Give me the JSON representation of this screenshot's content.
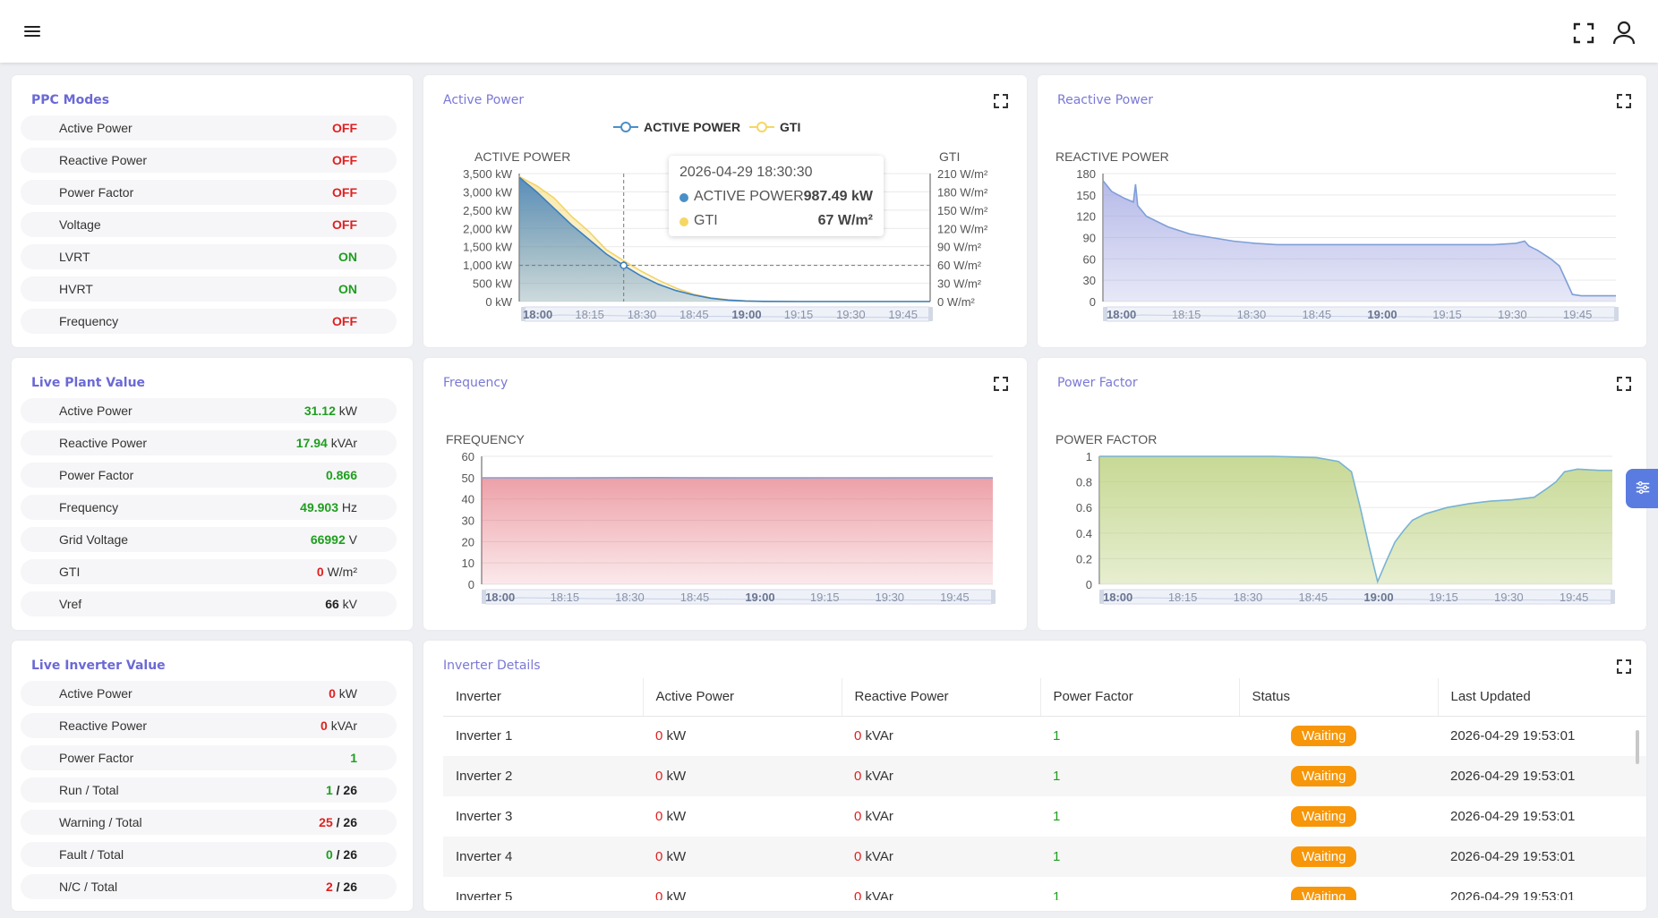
{
  "ppc_modes": {
    "title": "PPC Modes",
    "rows": [
      {
        "label": "Active Power",
        "value": "OFF",
        "status": "red"
      },
      {
        "label": "Reactive Power",
        "value": "OFF",
        "status": "red"
      },
      {
        "label": "Power Factor",
        "value": "OFF",
        "status": "red"
      },
      {
        "label": "Voltage",
        "value": "OFF",
        "status": "red"
      },
      {
        "label": "LVRT",
        "value": "ON",
        "status": "green"
      },
      {
        "label": "HVRT",
        "value": "ON",
        "status": "green"
      },
      {
        "label": "Frequency",
        "value": "OFF",
        "status": "red"
      }
    ]
  },
  "live_plant": {
    "title": "Live Plant Value",
    "rows": [
      {
        "label": "Active Power",
        "value": "31.12",
        "unit": "kW",
        "status": "green"
      },
      {
        "label": "Reactive Power",
        "value": "17.94",
        "unit": "kVAr",
        "status": "green"
      },
      {
        "label": "Power Factor",
        "value": "0.866",
        "unit": "",
        "status": "green"
      },
      {
        "label": "Frequency",
        "value": "49.903",
        "unit": "Hz",
        "status": "green"
      },
      {
        "label": "Grid Voltage",
        "value": "66992",
        "unit": "V",
        "status": "green"
      },
      {
        "label": "GTI",
        "value": "0",
        "unit": "W/m²",
        "status": "red"
      },
      {
        "label": "Vref",
        "value": "66",
        "unit": "kV",
        "status": "dark"
      }
    ]
  },
  "live_inverter": {
    "title": "Live Inverter Value",
    "rows": [
      {
        "label": "Active Power",
        "value": "0",
        "unit": "kW",
        "status": "red"
      },
      {
        "label": "Reactive Power",
        "value": "0",
        "unit": "kVAr",
        "status": "red"
      },
      {
        "label": "Power Factor",
        "value": "1",
        "unit": "",
        "status": "green"
      },
      {
        "label": "Run / Total",
        "value": "1",
        "total": "/ 26",
        "status": "green"
      },
      {
        "label": "Warning / Total",
        "value": "25",
        "total": "/ 26",
        "status": "red"
      },
      {
        "label": "Fault / Total",
        "value": "0",
        "total": "/ 26",
        "status": "green"
      },
      {
        "label": "N/C / Total",
        "value": "2",
        "total": "/ 26",
        "status": "red"
      }
    ]
  },
  "colors": {
    "accent": "#7a78d6",
    "off": "#e02020",
    "on": "#1f9e1f",
    "waiting": "#f79608",
    "active_power_series": "#4a90c8",
    "gti_series": "#f5d764",
    "reactive_series": "#9aa0dc",
    "frequency_series": "#e57f86",
    "power_factor_series": "#a9c866"
  },
  "zoom_labels": [
    "18:00",
    "18:15",
    "18:30",
    "18:45",
    "19:00",
    "19:15",
    "19:30",
    "19:45"
  ],
  "zoom_bold": [
    "18:00",
    "19:00"
  ],
  "active_power_card": {
    "title": "Active Power",
    "tooltip": {
      "time": "2026-04-29 18:30:30",
      "rows": [
        {
          "name": "ACTIVE POWER",
          "value": "987.49 kW"
        },
        {
          "name": "GTI",
          "value": "67 W/m²"
        }
      ]
    }
  },
  "reactive_power_card": {
    "title": "Reactive Power"
  },
  "frequency_card": {
    "title": "Frequency"
  },
  "power_factor_card": {
    "title": "Power Factor"
  },
  "chart_data": [
    {
      "type": "area",
      "title": "Active Power",
      "legend": [
        "ACTIVE POWER",
        "GTI"
      ],
      "legend_position": "top-center",
      "ylabel": "ACTIVE POWER",
      "y2label": "GTI",
      "y_ticks": [
        "3,500 kW",
        "3,000 kW",
        "2,500 kW",
        "2,000 kW",
        "1,500 kW",
        "1,000 kW",
        "500 kW",
        "0 kW"
      ],
      "y2_ticks": [
        "210 W/m²",
        "180 W/m²",
        "150 W/m²",
        "120 W/m²",
        "90 W/m²",
        "60 W/m²",
        "30 W/m²",
        "0 W/m²"
      ],
      "ylim": [
        0,
        3500
      ],
      "y2lim": [
        0,
        210
      ],
      "x_range": [
        "18:00",
        "19:58"
      ],
      "series": [
        {
          "name": "ACTIVE POWER",
          "x_min": [
            0,
            5,
            10,
            15,
            20,
            25,
            30,
            35,
            40,
            45,
            50,
            55,
            60,
            65,
            70,
            80,
            90,
            100,
            110,
            118
          ],
          "values": [
            3400,
            3000,
            2550,
            2100,
            1700,
            1300,
            987,
            700,
            470,
            300,
            180,
            90,
            40,
            15,
            5,
            0,
            0,
            0,
            0,
            0
          ]
        },
        {
          "name": "GTI",
          "x_min": [
            0,
            5,
            10,
            15,
            20,
            25,
            30,
            35,
            40,
            45,
            50,
            55,
            60,
            65,
            70,
            80,
            90,
            100,
            110,
            118
          ],
          "values": [
            205,
            190,
            170,
            140,
            115,
            85,
            67,
            50,
            35,
            22,
            12,
            6,
            3,
            1,
            0,
            0,
            0,
            0,
            0,
            0
          ]
        }
      ]
    },
    {
      "type": "area",
      "title": "Reactive Power",
      "ylabel": "REACTIVE POWER",
      "y_ticks": [
        "180",
        "150",
        "120",
        "90",
        "60",
        "30",
        "0"
      ],
      "ylim": [
        0,
        180
      ],
      "x_range": [
        "18:00",
        "19:58"
      ],
      "series": [
        {
          "name": "Reactive Power",
          "x_min": [
            0,
            2,
            5,
            7,
            7.5,
            8,
            10,
            15,
            20,
            25,
            30,
            35,
            40,
            50,
            60,
            70,
            80,
            90,
            95,
            97,
            98,
            100,
            103,
            105,
            108,
            110,
            118
          ],
          "values": [
            170,
            155,
            145,
            140,
            165,
            135,
            120,
            105,
            95,
            90,
            85,
            82,
            80,
            80,
            80,
            80,
            80,
            80,
            82,
            85,
            78,
            72,
            60,
            50,
            10,
            8,
            8
          ]
        }
      ]
    },
    {
      "type": "area",
      "title": "Frequency",
      "ylabel": "FREQUENCY",
      "y_ticks": [
        "60",
        "50",
        "40",
        "30",
        "20",
        "10",
        "0"
      ],
      "ylim": [
        0,
        60
      ],
      "x_range": [
        "18:00",
        "19:58"
      ],
      "series": [
        {
          "name": "Frequency",
          "x_min": [
            0,
            20,
            40,
            60,
            80,
            100,
            118
          ],
          "values": [
            49.95,
            49.9,
            50.0,
            49.9,
            49.95,
            49.9,
            49.903
          ]
        }
      ]
    },
    {
      "type": "area",
      "title": "Power Factor",
      "ylabel": "POWER FACTOR",
      "y_ticks": [
        "1",
        "0.8",
        "0.6",
        "0.4",
        "0.2",
        "0"
      ],
      "ylim": [
        0,
        1
      ],
      "x_range": [
        "18:00",
        "19:58"
      ],
      "series": [
        {
          "name": "Power Factor",
          "x_min": [
            0,
            20,
            40,
            50,
            55,
            58,
            60,
            62,
            64,
            66,
            68,
            70,
            72,
            75,
            80,
            85,
            90,
            95,
            100,
            103,
            105,
            107,
            110,
            115,
            118
          ],
          "values": [
            1,
            1,
            1,
            0.99,
            0.96,
            0.88,
            0.6,
            0.3,
            0.02,
            0.18,
            0.33,
            0.42,
            0.5,
            0.55,
            0.6,
            0.63,
            0.65,
            0.66,
            0.68,
            0.75,
            0.8,
            0.88,
            0.9,
            0.89,
            0.89
          ]
        }
      ]
    }
  ],
  "inverter_details": {
    "title": "Inverter Details",
    "columns": [
      "Inverter",
      "Active Power",
      "Reactive Power",
      "Power Factor",
      "Status",
      "Last Updated"
    ],
    "rows": [
      {
        "name": "Inverter 1",
        "ap": "0",
        "ap_unit": "kW",
        "rp": "0",
        "rp_unit": "kVAr",
        "pf": "1",
        "status": "Waiting",
        "updated": "2026-04-29 19:53:01"
      },
      {
        "name": "Inverter 2",
        "ap": "0",
        "ap_unit": "kW",
        "rp": "0",
        "rp_unit": "kVAr",
        "pf": "1",
        "status": "Waiting",
        "updated": "2026-04-29 19:53:01"
      },
      {
        "name": "Inverter 3",
        "ap": "0",
        "ap_unit": "kW",
        "rp": "0",
        "rp_unit": "kVAr",
        "pf": "1",
        "status": "Waiting",
        "updated": "2026-04-29 19:53:01"
      },
      {
        "name": "Inverter 4",
        "ap": "0",
        "ap_unit": "kW",
        "rp": "0",
        "rp_unit": "kVAr",
        "pf": "1",
        "status": "Waiting",
        "updated": "2026-04-29 19:53:01"
      },
      {
        "name": "Inverter 5",
        "ap": "0",
        "ap_unit": "kW",
        "rp": "0",
        "rp_unit": "kVAr",
        "pf": "1",
        "status": "Waiting",
        "updated": "2026-04-29 19:53:01"
      }
    ]
  }
}
